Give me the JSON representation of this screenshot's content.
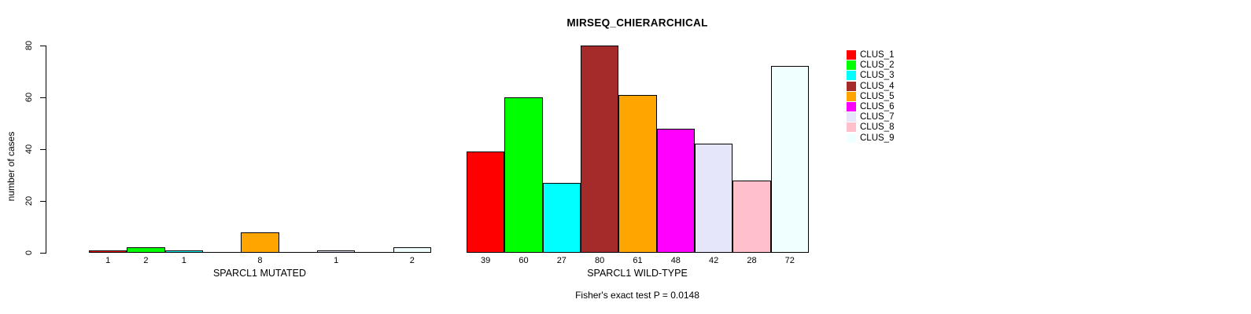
{
  "chart_data": {
    "type": "bar",
    "title": "MIRSEQ_CHIERARCHICAL",
    "ylabel": "number of cases",
    "xlabel": "",
    "ylim": [
      0,
      80
    ],
    "yticks": [
      0,
      20,
      40,
      60,
      80
    ],
    "grid": false,
    "legend_position": "right",
    "background_color": "#ffffff",
    "clusters": [
      {
        "label": "CLUS_1",
        "color": "#FF0000"
      },
      {
        "label": "CLUS_2",
        "color": "#00FF00"
      },
      {
        "label": "CLUS_3",
        "color": "#00FFFF"
      },
      {
        "label": "CLUS_4",
        "color": "#A52A2A"
      },
      {
        "label": "CLUS_5",
        "color": "#FFA500"
      },
      {
        "label": "CLUS_6",
        "color": "#FF00FF"
      },
      {
        "label": "CLUS_7",
        "color": "#E6E6FA"
      },
      {
        "label": "CLUS_8",
        "color": "#FFC0CB"
      },
      {
        "label": "CLUS_9",
        "color": "#F0FFFF"
      }
    ],
    "groups": [
      {
        "label": "SPARCL1 MUTATED",
        "values": [
          1,
          2,
          1,
          0,
          8,
          0,
          1,
          0,
          2
        ]
      },
      {
        "label": "SPARCL1 WILD-TYPE",
        "values": [
          39,
          60,
          27,
          80,
          61,
          48,
          42,
          28,
          72
        ]
      }
    ],
    "annotation": "Fisher's exact test P = 0.0148"
  }
}
